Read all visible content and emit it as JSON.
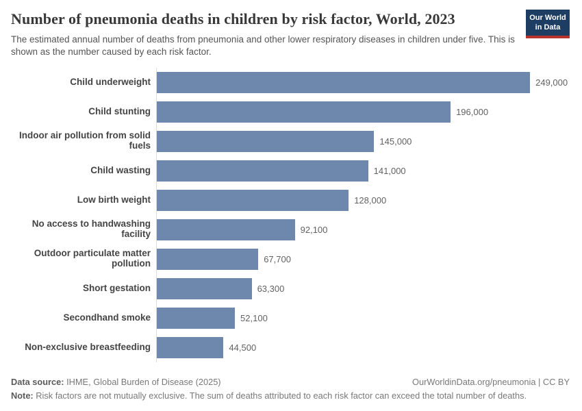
{
  "header": {
    "title": "Number of pneumonia deaths in children by risk factor, World, 2023",
    "subtitle": "The estimated annual number of deaths from pneumonia and other lower respiratory diseases in children under five. This is shown as the number caused by each risk factor.",
    "logo": {
      "line1": "Our World",
      "line2": "in Data"
    }
  },
  "chart_data": {
    "type": "bar",
    "orientation": "horizontal",
    "title": "Number of pneumonia deaths in children by risk factor, World, 2023",
    "categories": [
      "Child underweight",
      "Child stunting",
      "Indoor air pollution from solid fuels",
      "Child wasting",
      "Low birth weight",
      "No access to handwashing facility",
      "Outdoor particulate matter pollution",
      "Short gestation",
      "Secondhand smoke",
      "Non-exclusive breastfeeding"
    ],
    "values": [
      249000,
      196000,
      145000,
      141000,
      128000,
      92100,
      67700,
      63300,
      52100,
      44500
    ],
    "value_labels": [
      "249,000",
      "196,000",
      "145,000",
      "141,000",
      "128,000",
      "92,100",
      "67,700",
      "63,300",
      "52,100",
      "44,500"
    ],
    "xlabel": "",
    "ylabel": "",
    "xlim": [
      0,
      249000
    ],
    "grid": false,
    "legend": false,
    "bar_color": "#6e87ac",
    "axis_line_color": "#dcdcdc"
  },
  "footer": {
    "data_source_label": "Data source:",
    "data_source_text": "IHME, Global Burden of Disease (2025)",
    "credit": "OurWorldinData.org/pneumonia | CC BY",
    "note_label": "Note:",
    "note_text": "Risk factors are not mutually exclusive. The sum of deaths attributed to each risk factor can exceed the total number of deaths."
  },
  "colors": {
    "bar": "#6e87ac",
    "logo_background": "#1d3d63",
    "logo_red": "#b5342c",
    "title_text": "#383838",
    "subtitle_text": "#555555",
    "value_text": "#616161"
  }
}
